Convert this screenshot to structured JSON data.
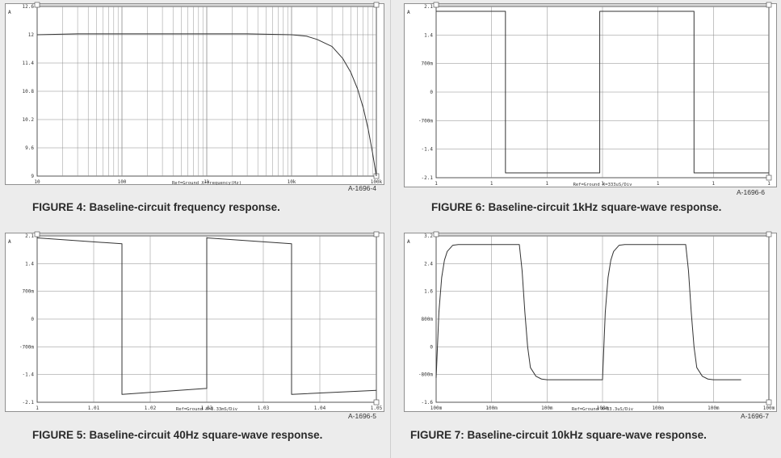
{
  "figures": [
    {
      "id": "fig4",
      "caption": "FIGURE 4: Baseline-circuit frequency response.",
      "figure_number": "A-1696-4",
      "corner_label": "A",
      "x_caption": "Ref=Ground  X=frequency(Hz)",
      "y_ticks": [
        "12.6",
        "12",
        "11.4",
        "10.8",
        "10.2",
        "9.6",
        "9"
      ],
      "x_ticks": [
        "10",
        "100",
        "1k",
        "10k",
        "100k"
      ],
      "colors": {
        "trace": "#333333",
        "grid": "#8a8a8a",
        "bg": "#ffffff"
      }
    },
    {
      "id": "fig6",
      "caption": "FIGURE 6: Baseline-circuit 1kHz square-wave response.",
      "figure_number": "A-1696-6",
      "corner_label": "A",
      "x_caption": "Ref=Ground  X=333uS/Div",
      "y_ticks": [
        "2.1",
        "1.4",
        "700m",
        "0",
        "-700m",
        "-1.4",
        "-2.1"
      ],
      "x_ticks": [
        "1",
        "1",
        "1",
        "1",
        "1",
        "1",
        "1"
      ],
      "colors": {
        "trace": "#333333",
        "grid": "#8a8a8a",
        "bg": "#ffffff"
      }
    },
    {
      "id": "fig5",
      "caption": "FIGURE 5: Baseline-circuit 40Hz square-wave response.",
      "figure_number": "A-1696-5",
      "corner_label": "A",
      "x_caption": "Ref=Ground  X=8.33mS/Div",
      "y_ticks": [
        "2.1",
        "1.4",
        "700m",
        "0",
        "-700m",
        "-1.4",
        "-2.1"
      ],
      "x_ticks": [
        "1",
        "1.01",
        "1.02",
        "1.03",
        "1.03",
        "1.04",
        "1.05"
      ],
      "colors": {
        "trace": "#333333",
        "grid": "#8a8a8a",
        "bg": "#ffffff"
      }
    },
    {
      "id": "fig7",
      "caption": "FIGURE 7: Baseline-circuit 10kHz square-wave response.",
      "figure_number": "A-1696-7",
      "corner_label": "A",
      "x_caption": "Ref=Ground  X=33.3uS/Div",
      "y_ticks": [
        "3.2",
        "2.4",
        "1.6",
        "800m",
        "0",
        "-800m",
        "-1.6"
      ],
      "x_ticks": [
        "100m",
        "100m",
        "100m",
        "100m",
        "100m",
        "100m",
        "100m"
      ],
      "colors": {
        "trace": "#333333",
        "grid": "#8a8a8a",
        "bg": "#ffffff"
      }
    }
  ],
  "chart_data": [
    {
      "type": "line",
      "title": "FIGURE 4: Baseline-circuit frequency response.",
      "xlabel": "X=frequency(Hz)",
      "ylabel": "",
      "xscale": "log",
      "xlim": [
        10,
        100000
      ],
      "ylim": [
        9,
        12.6
      ],
      "grid": true,
      "series": [
        {
          "x": [
            10,
            30,
            100,
            300,
            1000,
            3000,
            10000,
            15000,
            20000,
            30000,
            40000,
            50000,
            60000,
            70000,
            80000,
            90000,
            100000
          ],
          "y": [
            12.0,
            12.02,
            12.02,
            12.02,
            12.02,
            12.02,
            12.0,
            11.97,
            11.9,
            11.75,
            11.5,
            11.2,
            10.85,
            10.45,
            10.0,
            9.5,
            9.0
          ]
        }
      ]
    },
    {
      "type": "line",
      "title": "FIGURE 6: Baseline-circuit 1kHz square-wave response.",
      "xlabel": "X=333uS/Div",
      "ylabel": "",
      "xlim": [
        0,
        6
      ],
      "ylim": [
        -2.1,
        2.1
      ],
      "grid": true,
      "series": [
        {
          "x": [
            0,
            1.25,
            1.25,
            2.95,
            2.95,
            4.65,
            4.65,
            6
          ],
          "y": [
            1.98,
            1.98,
            -1.98,
            -1.98,
            1.98,
            1.98,
            -1.98,
            -1.98
          ]
        }
      ]
    },
    {
      "type": "line",
      "title": "FIGURE 5: Baseline-circuit 40Hz square-wave response.",
      "xlabel": "X=8.33mS/Div",
      "ylabel": "",
      "xlim": [
        0,
        6
      ],
      "ylim": [
        -2.1,
        2.1
      ],
      "grid": true,
      "series": [
        {
          "x": [
            0,
            1.5,
            1.5,
            3.0,
            3.0,
            4.5,
            4.5,
            6
          ],
          "y": [
            2.05,
            1.9,
            -1.9,
            -1.75,
            2.05,
            1.9,
            -1.9,
            -1.8
          ]
        }
      ]
    },
    {
      "type": "line",
      "title": "FIGURE 7: Baseline-circuit 10kHz square-wave response.",
      "xlabel": "X=33.3uS/Div",
      "ylabel": "",
      "xlim": [
        0,
        6
      ],
      "ylim": [
        -1.6,
        3.2
      ],
      "grid": true,
      "series": [
        {
          "x": [
            0,
            0.05,
            0.1,
            0.15,
            0.2,
            0.3,
            0.4,
            1.5,
            1.55,
            1.6,
            1.65,
            1.7,
            1.8,
            1.9,
            2.0,
            3.0,
            3.05,
            3.1,
            3.15,
            3.2,
            3.3,
            3.4,
            4.5,
            4.55,
            4.6,
            4.65,
            4.7,
            4.8,
            4.9,
            5.0,
            5.5
          ],
          "y": [
            -0.9,
            1.0,
            2.0,
            2.5,
            2.75,
            2.93,
            2.95,
            2.95,
            2.2,
            1.0,
            0.0,
            -0.6,
            -0.85,
            -0.93,
            -0.95,
            -0.95,
            1.0,
            2.0,
            2.5,
            2.75,
            2.93,
            2.95,
            2.95,
            2.2,
            1.0,
            0.0,
            -0.6,
            -0.85,
            -0.93,
            -0.95,
            -0.95
          ]
        }
      ]
    }
  ]
}
